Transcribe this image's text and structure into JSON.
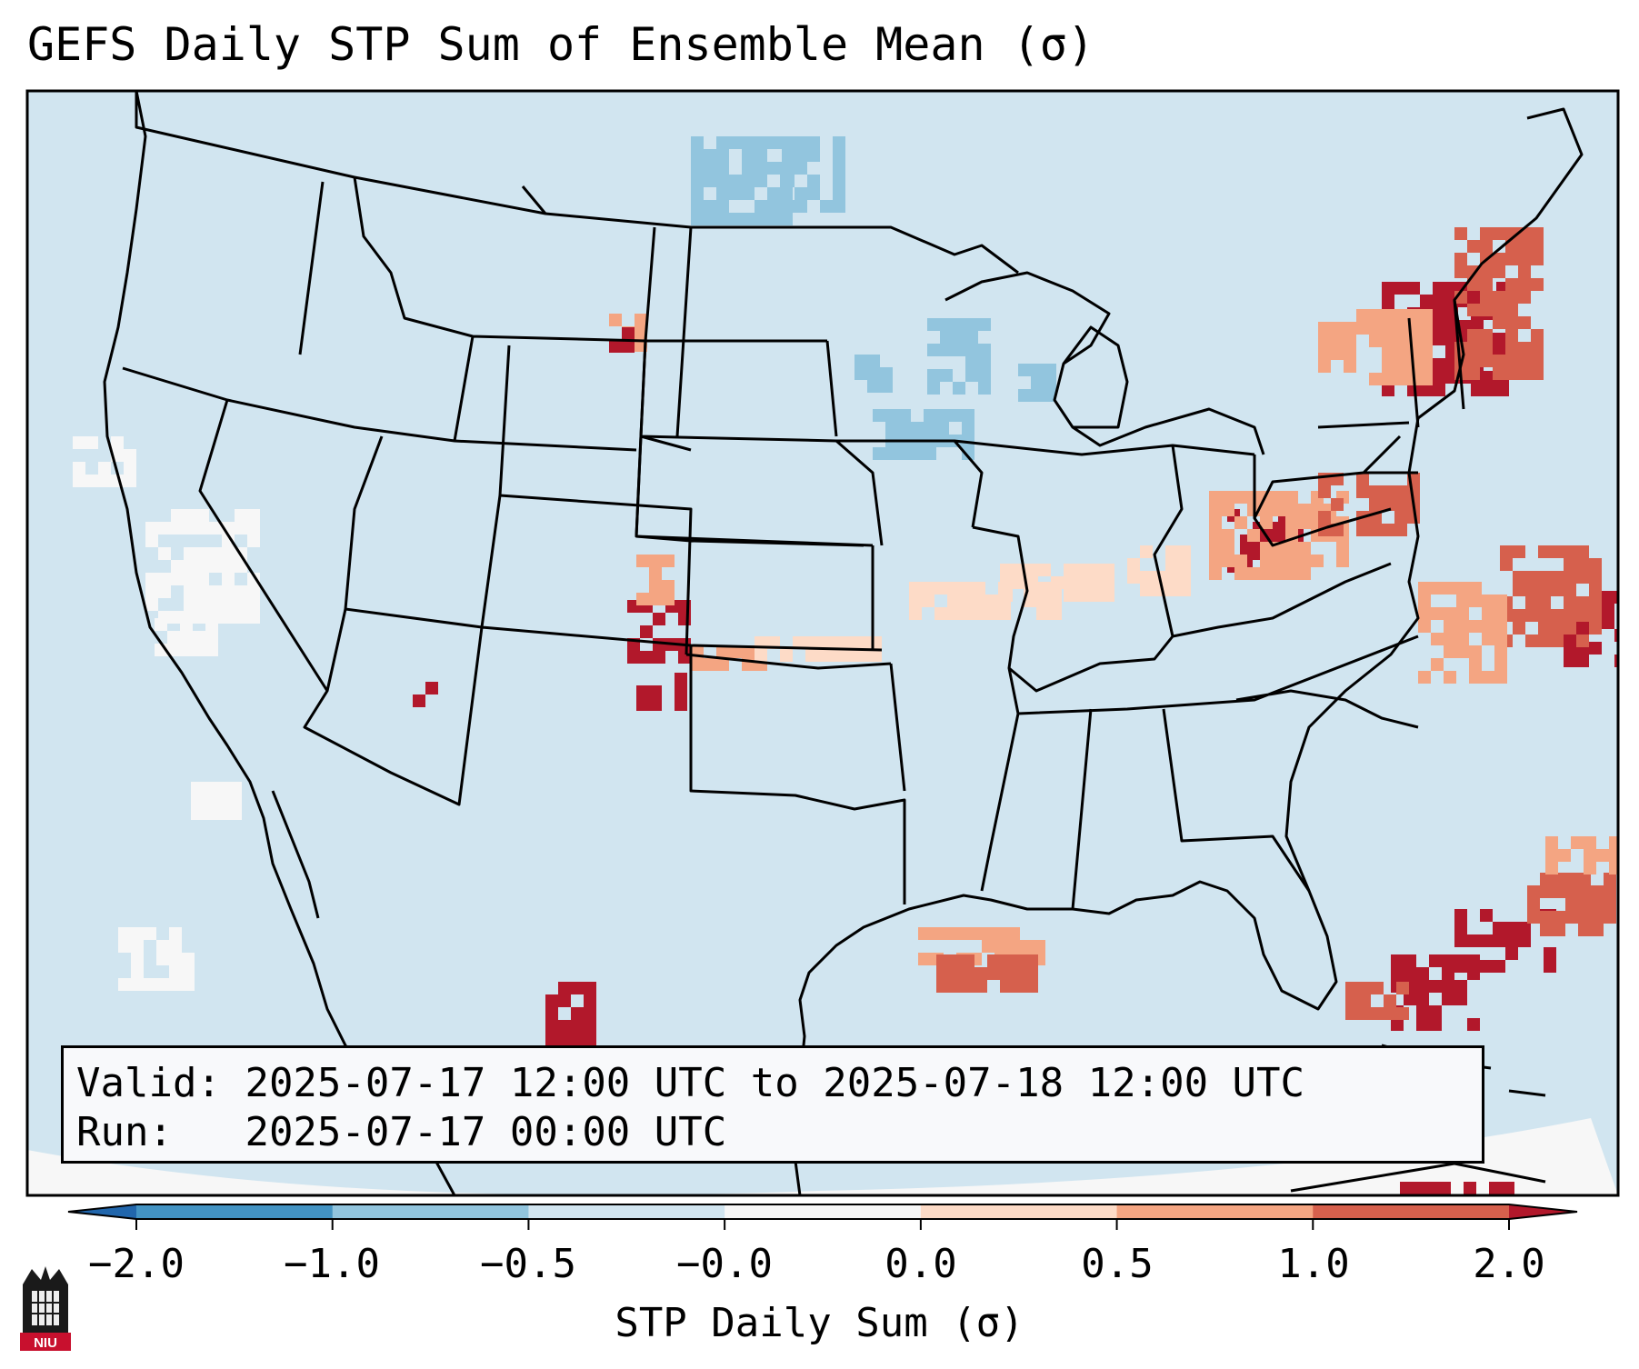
{
  "title": "GEFS Daily STP Sum of Ensemble Mean (σ)",
  "info": {
    "valid_label": "Valid:",
    "valid_value": "2025-07-17 12:00 UTC to 2025-07-18 12:00 UTC",
    "run_label": "Run:",
    "run_value": "2025-07-17 00:00 UTC"
  },
  "colorbar": {
    "label": "STP Daily Sum (σ)",
    "ticks": [
      "−2.0",
      "−1.0",
      "−0.5",
      "−0.0",
      "0.0",
      "0.5",
      "1.0",
      "2.0"
    ],
    "colors": {
      "below": "#2166ac",
      "b1": "#4393c3",
      "b2": "#92c5de",
      "b3": "#d1e5f0",
      "b4": "#f7f7f7",
      "b5": "#fddbc7",
      "b6": "#f4a582",
      "b7": "#d6604d",
      "above": "#b2182b"
    }
  },
  "map_colors": {
    "background": "#d1e5f0",
    "light_blue": "#92c5de",
    "white": "#f7f7f7",
    "peach": "#fddbc7",
    "salmon": "#f4a582",
    "red": "#d6604d",
    "dark_red": "#b2182b"
  },
  "logo_text": "NIU"
}
